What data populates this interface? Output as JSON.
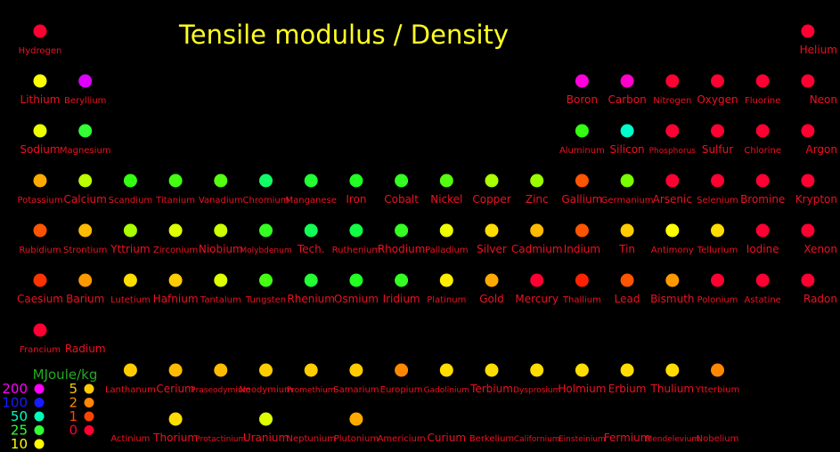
{
  "chart_data": {
    "type": "scatter",
    "title": "Tensile modulus / Density",
    "xlabel": "",
    "ylabel": "",
    "legend": {
      "title": "MJoule/kg",
      "placement": "bottom-left",
      "entries": [
        {
          "label": "200",
          "color": "#ff00ff"
        },
        {
          "label": "100",
          "color": "#1a1aff"
        },
        {
          "label": "50",
          "color": "#00ffbb"
        },
        {
          "label": "25",
          "color": "#33ff33"
        },
        {
          "label": "10",
          "color": "#ffff00"
        },
        {
          "label": "5",
          "color": "#ffcc00"
        },
        {
          "label": "2",
          "color": "#ff8800"
        },
        {
          "label": "1",
          "color": "#ff4400"
        },
        {
          "label": "0",
          "color": "#ff0033"
        }
      ]
    },
    "elements": [
      {
        "name": "Hydrogen",
        "group": 1,
        "period": 1,
        "color": "#ff0033"
      },
      {
        "name": "Helium",
        "group": 18,
        "period": 1,
        "color": "#ff0033"
      },
      {
        "name": "Lithium",
        "group": 1,
        "period": 2,
        "color": "#ffff00"
      },
      {
        "name": "Beryllium",
        "group": 2,
        "period": 2,
        "color": "#dd00ff"
      },
      {
        "name": "Boron",
        "group": 13,
        "period": 2,
        "color": "#ff00dd"
      },
      {
        "name": "Carbon",
        "group": 14,
        "period": 2,
        "color": "#ff00cc"
      },
      {
        "name": "Nitrogen",
        "group": 15,
        "period": 2,
        "color": "#ff0033"
      },
      {
        "name": "Oxygen",
        "group": 16,
        "period": 2,
        "color": "#ff0033"
      },
      {
        "name": "Fluorine",
        "group": 17,
        "period": 2,
        "color": "#ff0033"
      },
      {
        "name": "Neon",
        "group": 18,
        "period": 2,
        "color": "#ff0033"
      },
      {
        "name": "Sodium",
        "group": 1,
        "period": 3,
        "color": "#eeff00"
      },
      {
        "name": "Magnesium",
        "group": 2,
        "period": 3,
        "color": "#33ff33"
      },
      {
        "name": "Aluminum",
        "group": 13,
        "period": 3,
        "color": "#33ff11"
      },
      {
        "name": "Silicon",
        "group": 14,
        "period": 3,
        "color": "#00ffcc"
      },
      {
        "name": "Phosphorus",
        "group": 15,
        "period": 3,
        "color": "#ff0033"
      },
      {
        "name": "Sulfur",
        "group": 16,
        "period": 3,
        "color": "#ff0033"
      },
      {
        "name": "Chlorine",
        "group": 17,
        "period": 3,
        "color": "#ff0033"
      },
      {
        "name": "Argon",
        "group": 18,
        "period": 3,
        "color": "#ff0033"
      },
      {
        "name": "Potassium",
        "group": 1,
        "period": 4,
        "color": "#ffaa00"
      },
      {
        "name": "Calcium",
        "group": 2,
        "period": 4,
        "color": "#bbff00"
      },
      {
        "name": "Scandium",
        "group": 3,
        "period": 4,
        "color": "#33ff11"
      },
      {
        "name": "Titanium",
        "group": 4,
        "period": 4,
        "color": "#44ff11"
      },
      {
        "name": "Vanadium",
        "group": 5,
        "period": 4,
        "color": "#55ff11"
      },
      {
        "name": "Chromium",
        "group": 6,
        "period": 4,
        "color": "#11ff66"
      },
      {
        "name": "Manganese",
        "group": 7,
        "period": 4,
        "color": "#22ff33"
      },
      {
        "name": "Iron",
        "group": 8,
        "period": 4,
        "color": "#22ff22"
      },
      {
        "name": "Cobalt",
        "group": 9,
        "period": 4,
        "color": "#33ff22"
      },
      {
        "name": "Nickel",
        "group": 10,
        "period": 4,
        "color": "#55ff11"
      },
      {
        "name": "Copper",
        "group": 11,
        "period": 4,
        "color": "#aaff00"
      },
      {
        "name": "Zinc",
        "group": 12,
        "period": 4,
        "color": "#99ff00"
      },
      {
        "name": "Gallium",
        "group": 13,
        "period": 4,
        "color": "#ff5500"
      },
      {
        "name": "Germanium",
        "group": 14,
        "period": 4,
        "color": "#77ff00"
      },
      {
        "name": "Arsenic",
        "group": 15,
        "period": 4,
        "color": "#ff0033"
      },
      {
        "name": "Selenium",
        "group": 16,
        "period": 4,
        "color": "#ff0033"
      },
      {
        "name": "Bromine",
        "group": 17,
        "period": 4,
        "color": "#ff0033"
      },
      {
        "name": "Krypton",
        "group": 18,
        "period": 4,
        "color": "#ff0033"
      },
      {
        "name": "Rubidium",
        "group": 1,
        "period": 5,
        "color": "#ff5500"
      },
      {
        "name": "Strontium",
        "group": 2,
        "period": 5,
        "color": "#ffbb00"
      },
      {
        "name": "Yttrium",
        "group": 3,
        "period": 5,
        "color": "#aaff00"
      },
      {
        "name": "Zirconium",
        "group": 4,
        "period": 5,
        "color": "#ddff00"
      },
      {
        "name": "Niobium",
        "group": 5,
        "period": 5,
        "color": "#ccff00"
      },
      {
        "name": "Molybdenum",
        "group": 6,
        "period": 5,
        "color": "#33ff22"
      },
      {
        "name": "Tech.",
        "group": 7,
        "period": 5,
        "color": "#11ff55"
      },
      {
        "name": "Ruthenium",
        "group": 8,
        "period": 5,
        "color": "#11ff44"
      },
      {
        "name": "Rhodium",
        "group": 9,
        "period": 5,
        "color": "#33ff22"
      },
      {
        "name": "Palladium",
        "group": 10,
        "period": 5,
        "color": "#eeff00"
      },
      {
        "name": "Silver",
        "group": 11,
        "period": 5,
        "color": "#ffdd00"
      },
      {
        "name": "Cadmium",
        "group": 12,
        "period": 5,
        "color": "#ffbb00"
      },
      {
        "name": "Indium",
        "group": 13,
        "period": 5,
        "color": "#ff5500"
      },
      {
        "name": "Tin",
        "group": 14,
        "period": 5,
        "color": "#ffcc00"
      },
      {
        "name": "Antimony",
        "group": 15,
        "period": 5,
        "color": "#ffff00"
      },
      {
        "name": "Tellurium",
        "group": 16,
        "period": 5,
        "color": "#ffdd00"
      },
      {
        "name": "Iodine",
        "group": 17,
        "period": 5,
        "color": "#ff0033"
      },
      {
        "name": "Xenon",
        "group": 18,
        "period": 5,
        "color": "#ff0033"
      },
      {
        "name": "Caesium",
        "group": 1,
        "period": 6,
        "color": "#ff3300"
      },
      {
        "name": "Barium",
        "group": 2,
        "period": 6,
        "color": "#ff9900"
      },
      {
        "name": "Lutetium",
        "group": 3,
        "period": 6,
        "color": "#ffdd00"
      },
      {
        "name": "Hafnium",
        "group": 4,
        "period": 6,
        "color": "#ffcc00"
      },
      {
        "name": "Tantalum",
        "group": 5,
        "period": 6,
        "color": "#ddff00"
      },
      {
        "name": "Tungsten",
        "group": 6,
        "period": 6,
        "color": "#44ff11"
      },
      {
        "name": "Rhenium",
        "group": 7,
        "period": 6,
        "color": "#22ff33"
      },
      {
        "name": "Osmium",
        "group": 8,
        "period": 6,
        "color": "#22ff22"
      },
      {
        "name": "Iridium",
        "group": 9,
        "period": 6,
        "color": "#33ff22"
      },
      {
        "name": "Platinum",
        "group": 10,
        "period": 6,
        "color": "#ffee00"
      },
      {
        "name": "Gold",
        "group": 11,
        "period": 6,
        "color": "#ffaa00"
      },
      {
        "name": "Mercury",
        "group": 12,
        "period": 6,
        "color": "#ff0033"
      },
      {
        "name": "Thallium",
        "group": 13,
        "period": 6,
        "color": "#ff2200"
      },
      {
        "name": "Lead",
        "group": 14,
        "period": 6,
        "color": "#ff5500"
      },
      {
        "name": "Bismuth",
        "group": 15,
        "period": 6,
        "color": "#ff9900"
      },
      {
        "name": "Polonium",
        "group": 16,
        "period": 6,
        "color": "#ff0033"
      },
      {
        "name": "Astatine",
        "group": 17,
        "period": 6,
        "color": "#ff0033"
      },
      {
        "name": "Radon",
        "group": 18,
        "period": 6,
        "color": "#ff0033"
      },
      {
        "name": "Francium",
        "group": 1,
        "period": 7,
        "color": "#ff0033"
      },
      {
        "name": "Radium",
        "group": 2,
        "period": 7,
        "color": null
      },
      {
        "name": "Lanthanum",
        "group": 3,
        "period": 8,
        "color": "#ffcc00"
      },
      {
        "name": "Cerium",
        "group": 4,
        "period": 8,
        "color": "#ffbb00"
      },
      {
        "name": "Praseodymium",
        "group": 5,
        "period": 8,
        "color": "#ffbb00"
      },
      {
        "name": "Neodymium",
        "group": 6,
        "period": 8,
        "color": "#ffcc00"
      },
      {
        "name": "Promethium",
        "group": 7,
        "period": 8,
        "color": "#ffcc00"
      },
      {
        "name": "Samarium",
        "group": 8,
        "period": 8,
        "color": "#ffcc00"
      },
      {
        "name": "Europium",
        "group": 9,
        "period": 8,
        "color": "#ff8800"
      },
      {
        "name": "Gadolinium",
        "group": 10,
        "period": 8,
        "color": "#ffdd00"
      },
      {
        "name": "Terbium",
        "group": 11,
        "period": 8,
        "color": "#ffdd00"
      },
      {
        "name": "Dysprosium",
        "group": 12,
        "period": 8,
        "color": "#ffdd00"
      },
      {
        "name": "Holmium",
        "group": 13,
        "period": 8,
        "color": "#ffdd00"
      },
      {
        "name": "Erbium",
        "group": 14,
        "period": 8,
        "color": "#ffdd00"
      },
      {
        "name": "Thulium",
        "group": 15,
        "period": 8,
        "color": "#ffdd00"
      },
      {
        "name": "Ytterbium",
        "group": 16,
        "period": 8,
        "color": "#ff8800"
      },
      {
        "name": "Actinium",
        "group": 3,
        "period": 9,
        "color": null
      },
      {
        "name": "Thorium",
        "group": 4,
        "period": 9,
        "color": "#ffdd00"
      },
      {
        "name": "Protactinium",
        "group": 5,
        "period": 9,
        "color": null
      },
      {
        "name": "Uranium",
        "group": 6,
        "period": 9,
        "color": "#ddff00"
      },
      {
        "name": "Neptunium",
        "group": 7,
        "period": 9,
        "color": null
      },
      {
        "name": "Plutonium",
        "group": 8,
        "period": 9,
        "color": "#ffaa00"
      },
      {
        "name": "Americium",
        "group": 9,
        "period": 9,
        "color": null
      },
      {
        "name": "Curium",
        "group": 10,
        "period": 9,
        "color": null
      },
      {
        "name": "Berkelium",
        "group": 11,
        "period": 9,
        "color": null
      },
      {
        "name": "Californium",
        "group": 12,
        "period": 9,
        "color": null
      },
      {
        "name": "Einsteinium",
        "group": 13,
        "period": 9,
        "color": null
      },
      {
        "name": "Fermium",
        "group": 14,
        "period": 9,
        "color": null
      },
      {
        "name": "Mendelevium",
        "group": 15,
        "period": 9,
        "color": null
      },
      {
        "name": "Nobelium",
        "group": 16,
        "period": 9,
        "color": null
      }
    ]
  }
}
